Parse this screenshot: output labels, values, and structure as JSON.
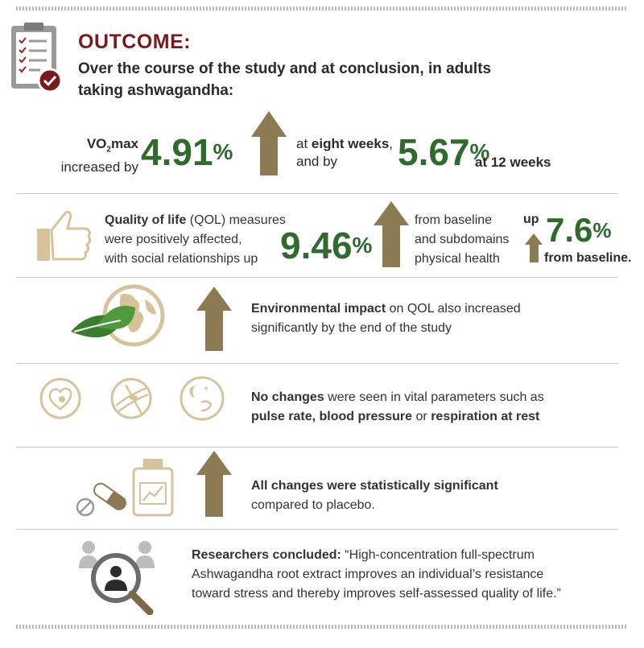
{
  "header": {
    "title": "OUTCOME:",
    "subtitle_line1": "Over the course of the study and at conclusion, in adults",
    "subtitle_line2": "taking ashwagandha:"
  },
  "vo2": {
    "label_vo": "VO",
    "label_sub": "2",
    "label_max": "max",
    "increased_by": "increased by",
    "value1": "4.91",
    "pct": "%",
    "at": "at ",
    "eight_weeks": "eight weeks",
    "comma": ",",
    "and_by": "and by",
    "value2": "5.67",
    "at12": "at 12 weeks"
  },
  "qol": {
    "bold": "Quality of life",
    "rest1": " (QOL) measures",
    "line2": "were positively affected,",
    "line3": "with social relationships up",
    "value": "9.46",
    "pct": "%",
    "from1": "from baseline",
    "from2": "and subdomains",
    "from3": "physical health",
    "up": "up",
    "value2": "7.6",
    "from_baseline": "from baseline."
  },
  "env": {
    "bold": "Environmental impact",
    "rest1": " on QOL also increased",
    "line2": "significantly by the end of the study"
  },
  "vital": {
    "bold": "No changes",
    "rest1": " were seen in vital parameters such as",
    "b1": "pulse rate, blood pressure",
    "or": " or ",
    "b2": "respiration at rest"
  },
  "sig": {
    "bold": "All changes were statistically significant",
    "line2": "compared to placebo."
  },
  "researchers": {
    "bold": "Researchers concluded:",
    "q1": " “High-concentration full-spectrum",
    "q2": "Ashwagandha root extract improves an individual’s resistance",
    "q3": "toward stress and thereby improves self-assessed quality of life.”"
  },
  "colors": {
    "title_red": "#7a1a1a",
    "value_green": "#2f6b2d",
    "arrow_brown": "#8b7a52",
    "icon_gold": "#d6c39a"
  },
  "icons": [
    "clipboard-check-icon",
    "thumbs-up-icon",
    "earth-leaf-icon",
    "heart-gears-icon",
    "blood-vessel-icon",
    "sleep-face-icon",
    "pill-bottle-icon",
    "researcher-magnifier-icon",
    "arrow-up-icon"
  ]
}
